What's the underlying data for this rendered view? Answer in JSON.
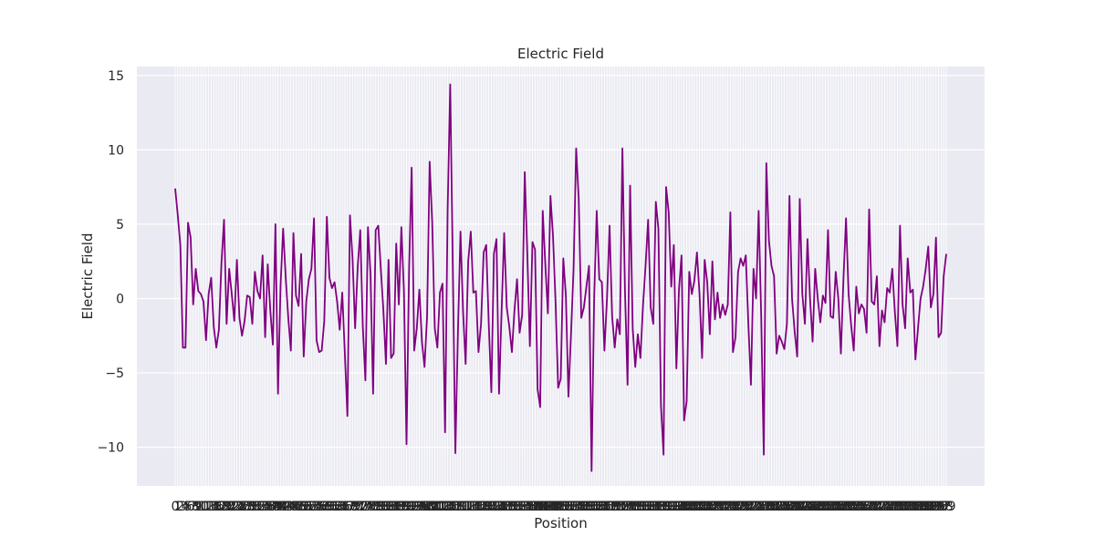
{
  "chart_data": {
    "type": "line",
    "title": "Electric Field",
    "xlabel": "Position",
    "ylabel": "Electric Field",
    "x_range": [
      0,
      299
    ],
    "ylim": [
      -12.6,
      15.6
    ],
    "yticks": [
      -10,
      -5,
      0,
      5,
      10,
      15
    ],
    "ytick_labels": [
      "−10",
      "−5",
      "0",
      "5",
      "10",
      "15"
    ],
    "grid": true,
    "legend": "none",
    "series": [
      {
        "color": "#800080",
        "values": [
          7.4,
          5.6,
          3.6,
          -3.3,
          -3.3,
          5.1,
          4.1,
          -0.4,
          2.0,
          0.5,
          0.3,
          -0.2,
          -2.8,
          0.3,
          1.4,
          -1.9,
          -3.3,
          -2.1,
          2.4,
          5.3,
          -1.7,
          2.0,
          0.3,
          -1.5,
          2.6,
          -1.3,
          -2.5,
          -1.5,
          0.2,
          0.1,
          -1.7,
          1.8,
          0.5,
          0.0,
          2.9,
          -2.6,
          2.3,
          -0.8,
          -3.1,
          5.0,
          -6.4,
          0.9,
          4.7,
          1.4,
          -1.3,
          -3.5,
          4.4,
          0.2,
          -0.5,
          3.0,
          -3.9,
          -0.2,
          1.3,
          2.0,
          5.4,
          -2.8,
          -3.6,
          -3.5,
          -1.5,
          5.5,
          1.4,
          0.7,
          1.1,
          -0.2,
          -2.1,
          0.4,
          -3.7,
          -7.9,
          5.6,
          2.7,
          -2.0,
          2.1,
          4.6,
          -1.9,
          -5.5,
          4.8,
          1.6,
          -6.4,
          4.6,
          4.9,
          2.0,
          -0.8,
          -4.4,
          2.6,
          -4.0,
          -3.7,
          3.7,
          -0.4,
          4.8,
          0.5,
          -9.8,
          2.0,
          8.8,
          -3.5,
          -2.0,
          0.6,
          -2.9,
          -4.6,
          -1.2,
          9.2,
          5.1,
          -2.0,
          -3.3,
          0.4,
          1.0,
          -9.0,
          6.0,
          14.4,
          2.3,
          -10.4,
          -2.3,
          4.5,
          -0.9,
          -4.4,
          2.5,
          4.5,
          0.4,
          0.5,
          -3.6,
          -1.7,
          3.1,
          3.6,
          -1.7,
          -6.3,
          3.0,
          4.0,
          -6.4,
          -0.8,
          4.4,
          -0.6,
          -1.9,
          -3.6,
          -0.8,
          1.3,
          -2.3,
          -1.1,
          8.5,
          3.0,
          -3.2,
          3.8,
          3.3,
          -6.1,
          -7.3,
          5.9,
          2.3,
          -1.0,
          6.9,
          4.2,
          -0.3,
          -6.0,
          -5.4,
          2.7,
          0.2,
          -6.6,
          -2.4,
          2.0,
          10.1,
          6.7,
          -1.3,
          -0.6,
          0.8,
          2.2,
          -11.6,
          0.0,
          5.9,
          1.3,
          1.1,
          -3.5,
          0.0,
          4.9,
          -1.2,
          -3.3,
          -1.4,
          -2.4,
          10.1,
          0.5,
          -5.8,
          7.6,
          -2.0,
          -4.6,
          -2.4,
          -4.0,
          -0.5,
          2.2,
          5.3,
          -0.6,
          -1.7,
          6.5,
          4.7,
          -7.2,
          -10.5,
          7.5,
          5.8,
          0.8,
          3.6,
          -4.7,
          0.6,
          2.9,
          -8.2,
          -6.9,
          1.8,
          0.3,
          1.2,
          3.1,
          0.3,
          -4.0,
          2.6,
          1.1,
          -2.4,
          2.5,
          -1.4,
          0.4,
          -1.3,
          -0.4,
          -1.1,
          -0.4,
          5.8,
          -3.6,
          -2.6,
          1.8,
          2.7,
          2.2,
          2.9,
          -1.7,
          -5.8,
          2.0,
          0.0,
          5.9,
          -1.2,
          -10.5,
          9.1,
          3.9,
          2.2,
          1.5,
          -3.7,
          -2.5,
          -2.9,
          -3.4,
          -1.7,
          6.9,
          0.0,
          -2.2,
          -3.9,
          6.7,
          0.3,
          -1.7,
          4.0,
          0.0,
          -2.9,
          2.0,
          0.0,
          -1.6,
          0.2,
          -0.3,
          4.6,
          -1.2,
          -1.3,
          1.8,
          0.0,
          -3.7,
          1.3,
          5.4,
          0.3,
          -1.8,
          -3.5,
          0.8,
          -1.0,
          -0.4,
          -0.7,
          -2.3,
          6.0,
          -0.2,
          -0.4,
          1.5,
          -3.2,
          -0.8,
          -1.6,
          0.7,
          0.4,
          2.0,
          -0.9,
          -3.2,
          4.9,
          -0.4,
          -2.0,
          2.7,
          0.4,
          0.6,
          -4.1,
          -2.0,
          0.0,
          0.8,
          2.0,
          3.5,
          -0.6,
          0.3,
          4.1,
          -2.6,
          -2.3,
          1.5,
          3.0
        ]
      }
    ]
  }
}
